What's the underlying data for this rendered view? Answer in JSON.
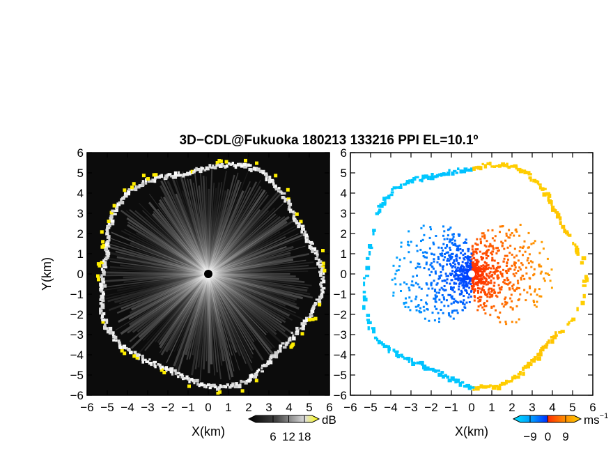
{
  "title": "3D−CDL@Fukuoka 180213 133216 PPI EL=10.1º",
  "chart_data": [
    {
      "type": "heatmap",
      "panel": "intensity",
      "xlabel": "X(km)",
      "ylabel": "Y(km)",
      "xlim": [
        -6,
        6
      ],
      "ylim": [
        -6,
        6
      ],
      "ticks": [
        -6,
        -5,
        -4,
        -3,
        -2,
        -1,
        0,
        1,
        2,
        3,
        4,
        5,
        6
      ],
      "tick_labels": [
        "−6",
        "−5",
        "−4",
        "−3",
        "−2",
        "−1",
        "0",
        "1",
        "2",
        "3",
        "4",
        "5",
        "6"
      ],
      "grid": false,
      "ring_radius_km": 5.4,
      "colorbar": {
        "unit": "dB",
        "ticks": [
          6,
          12,
          18
        ],
        "tick_labels": [
          "6",
          "12",
          "18"
        ],
        "colors": [
          "#000000",
          "#555555",
          "#aaaaaa",
          "#ffffff",
          "#ffff00"
        ]
      },
      "colors": {
        "background": "#0c0c0c",
        "ray": "#ffffff",
        "ring": "#e8e8e8",
        "hot": "#ffee00"
      }
    },
    {
      "type": "heatmap",
      "panel": "velocity",
      "xlabel": "X(km)",
      "ylabel": "",
      "xlim": [
        -6,
        6
      ],
      "ylim": [
        -6,
        6
      ],
      "ticks": [
        -6,
        -5,
        -4,
        -3,
        -2,
        -1,
        0,
        1,
        2,
        3,
        4,
        5,
        6
      ],
      "tick_labels": [
        "−6",
        "−5",
        "−4",
        "−3",
        "−2",
        "−1",
        "0",
        "1",
        "2",
        "3",
        "4",
        "5",
        "6"
      ],
      "grid": false,
      "ring_radius_km": 5.4,
      "colorbar": {
        "unit": "ms",
        "unit_exponent": "−1",
        "ticks": [
          -9,
          0,
          9
        ],
        "tick_labels": [
          "−9",
          "0",
          "9"
        ],
        "colors": [
          "#00e6ff",
          "#0090ff",
          "#0030ff",
          "#ff2a00",
          "#ff8a00",
          "#ffd000"
        ]
      },
      "colors": {
        "negative": "#0070ff",
        "negative_far": "#00c8ff",
        "positive": "#ff4000",
        "positive_far": "#ffcc00"
      }
    }
  ]
}
